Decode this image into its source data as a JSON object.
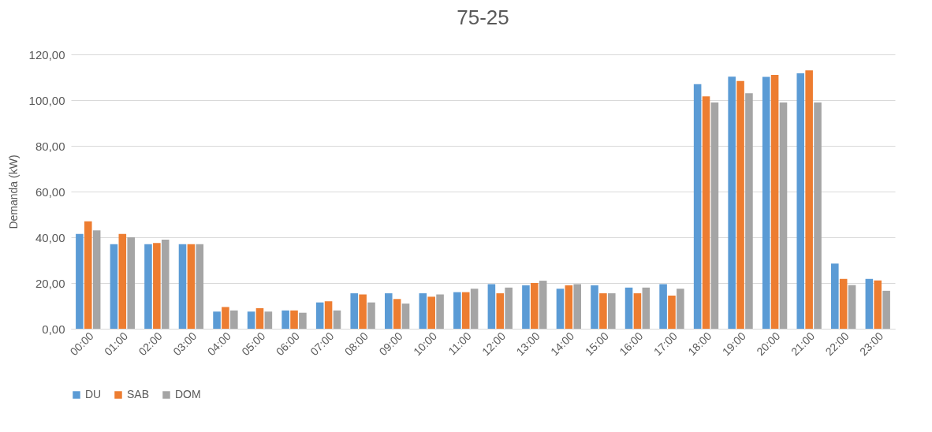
{
  "chart_data": {
    "type": "bar",
    "title": "75-25",
    "ylabel": "Demanda (kW)",
    "categories": [
      "00:00",
      "01:00",
      "02:00",
      "03:00",
      "04:00",
      "05:00",
      "06:00",
      "07:00",
      "08:00",
      "09:00",
      "10:00",
      "11:00",
      "12:00",
      "13:00",
      "14:00",
      "15:00",
      "16:00",
      "17:00",
      "18:00",
      "19:00",
      "20:00",
      "21:00",
      "22:00",
      "23:00"
    ],
    "series": [
      {
        "name": "DU",
        "color": "#5b9bd5",
        "values": [
          41.5,
          37,
          37,
          37,
          7.5,
          7.5,
          8,
          11.5,
          15.5,
          15.5,
          15.5,
          16,
          19.5,
          19,
          17.5,
          19,
          18,
          19.5,
          107,
          110.3,
          110.2,
          111.7,
          28.5,
          21.8
        ]
      },
      {
        "name": "SAB",
        "color": "#ed7d31",
        "values": [
          47,
          41.5,
          37.5,
          37,
          9.5,
          9,
          8,
          12,
          15,
          13,
          14,
          16,
          15.5,
          20,
          19,
          15.5,
          15.5,
          14.5,
          101.6,
          108.4,
          111,
          113,
          21.8,
          21.1
        ]
      },
      {
        "name": "DOM",
        "color": "#a5a5a5",
        "values": [
          43,
          40,
          39,
          37,
          8,
          7.5,
          7,
          8,
          11.5,
          11,
          15,
          17.5,
          18,
          21,
          19.5,
          15.5,
          18,
          17.5,
          99,
          103,
          99,
          99,
          19.1,
          16.6
        ]
      }
    ],
    "ylim": [
      0,
      120
    ],
    "yticks": [
      {
        "value": 0,
        "label": "0,00"
      },
      {
        "value": 20,
        "label": "20,00"
      },
      {
        "value": 40,
        "label": "40,00"
      },
      {
        "value": 60,
        "label": "60,00"
      },
      {
        "value": 80,
        "label": "80,00"
      },
      {
        "value": 100,
        "label": "100,00"
      },
      {
        "value": 120,
        "label": "120,00"
      }
    ],
    "grid": "y",
    "legend": "bottom"
  }
}
